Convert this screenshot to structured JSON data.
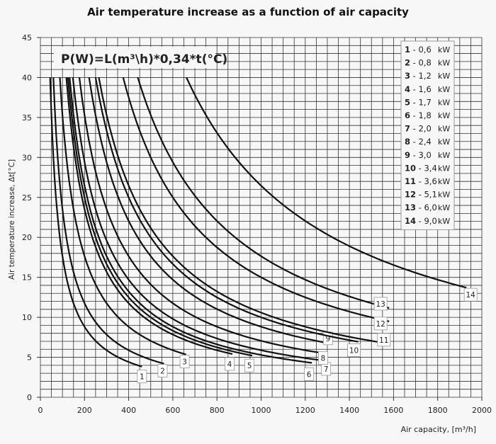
{
  "chart_data": {
    "type": "line",
    "title": "Air temperature increase as a function of air capacity",
    "xlabel": "Air capacity, [m³/h]",
    "ylabel": "Air temperature increase, Δt[°C]",
    "formula": "P(W)=L(m³\\h)*0,34*t(°C)",
    "xlim": [
      0,
      2000
    ],
    "ylim": [
      0,
      45
    ],
    "xticks": [
      0,
      200,
      400,
      600,
      800,
      1000,
      1200,
      1400,
      1600,
      1800,
      2000
    ],
    "yticks": [
      0,
      5,
      10,
      15,
      20,
      25,
      30,
      35,
      40,
      45
    ],
    "grid": true,
    "legend_position": "top-right",
    "unit": "kW",
    "series": [
      {
        "name": "1",
        "power": "0,6",
        "x_end": 460
      },
      {
        "name": "2",
        "power": "0,8",
        "x_end": 560
      },
      {
        "name": "3",
        "power": "1,2",
        "x_end": 660
      },
      {
        "name": "4",
        "power": "1,6",
        "x_end": 870
      },
      {
        "name": "5",
        "power": "1,7",
        "x_end": 960
      },
      {
        "name": "6",
        "power": "1,8",
        "x_end": 1230
      },
      {
        "name": "7",
        "power": "2,0",
        "x_end": 1275
      },
      {
        "name": "8",
        "power": "2,4",
        "x_end": 1300
      },
      {
        "name": "9",
        "power": "3,0",
        "x_end": 1290
      },
      {
        "name": "10",
        "power": "3,4",
        "x_end": 1440
      },
      {
        "name": "11",
        "power": "3,6",
        "x_end": 1550
      },
      {
        "name": "12",
        "power": "5,1",
        "x_end": 1580
      },
      {
        "name": "13",
        "power": "6,0",
        "x_end": 1580
      },
      {
        "name": "14",
        "power": "9,0",
        "x_end": 1930
      }
    ]
  }
}
